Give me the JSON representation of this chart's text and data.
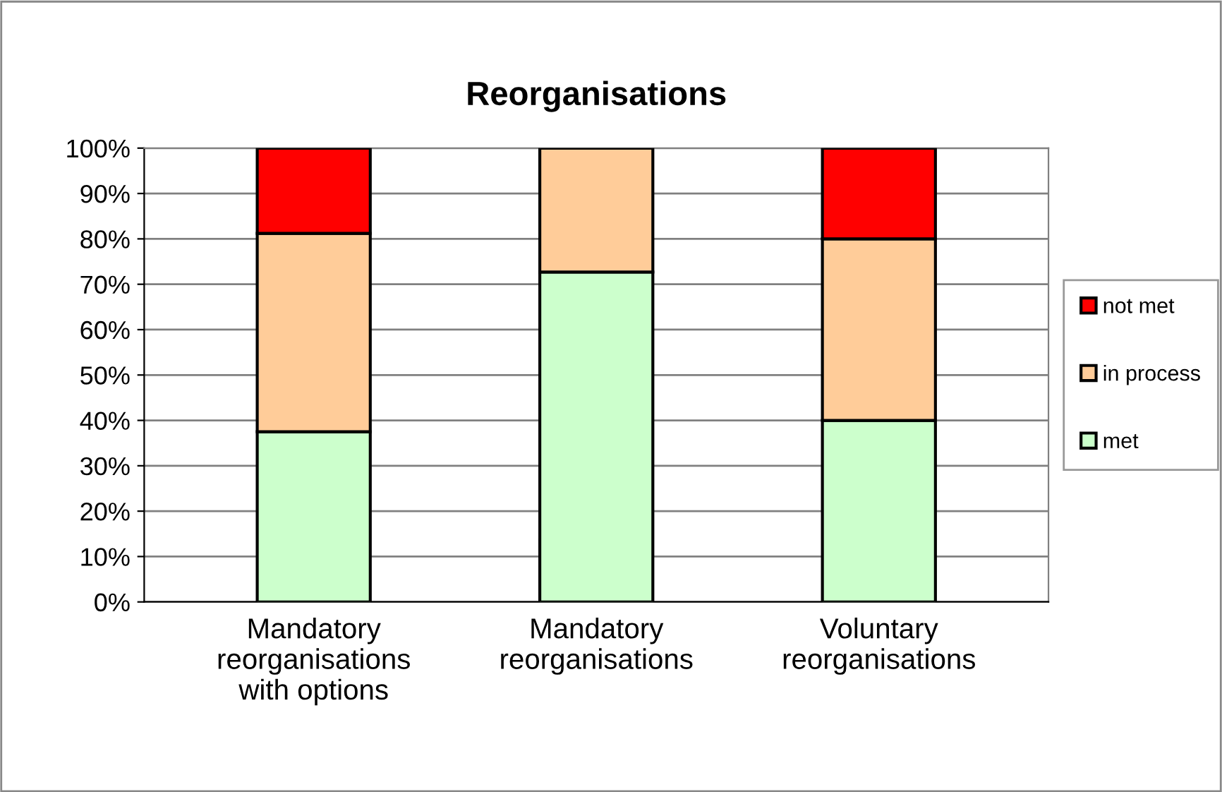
{
  "chart_data": {
    "type": "bar",
    "title": "Reorganisations",
    "stacked": true,
    "categories": [
      "Mandatory\nreorganisations\nwith options",
      "Mandatory\nreorganisations",
      "Voluntary\nreorganisations"
    ],
    "series": [
      {
        "name": "met",
        "color": "#ccffcc",
        "values": [
          37.5,
          72.7,
          40
        ]
      },
      {
        "name": "in process",
        "color": "#ffcc99",
        "values": [
          43.7,
          27.3,
          40
        ]
      },
      {
        "name": "not met",
        "color": "#ff0000",
        "values": [
          18.8,
          null,
          20
        ]
      }
    ],
    "ylim": [
      0,
      100
    ],
    "yticks": [
      {
        "value": 0,
        "label": "0%"
      },
      {
        "value": 10,
        "label": "10%"
      },
      {
        "value": 20,
        "label": "20%"
      },
      {
        "value": 30,
        "label": "30%"
      },
      {
        "value": 40,
        "label": "40%"
      },
      {
        "value": 50,
        "label": "50%"
      },
      {
        "value": 60,
        "label": "60%"
      },
      {
        "value": 70,
        "label": "70%"
      },
      {
        "value": 80,
        "label": "80%"
      },
      {
        "value": 90,
        "label": "90%"
      },
      {
        "value": 100,
        "label": "100%"
      }
    ],
    "grid": "y",
    "legend": "right"
  }
}
